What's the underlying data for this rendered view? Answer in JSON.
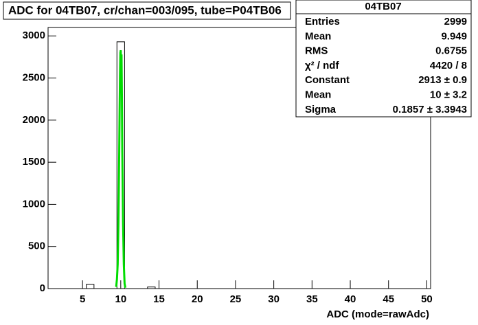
{
  "chart_data": {
    "type": "histogram",
    "title": "ADC for 04TB07,  cr/chan=003/095,  tube=P04TB06",
    "x_label": "ADC (mode=rawAdc)",
    "bins": [
      0.5,
      1.5,
      2.5,
      3.5,
      4.5,
      5.5,
      6.5,
      7.5,
      8.5,
      9.5,
      10.5,
      11.5,
      12.5,
      13.5,
      14.5,
      15.5,
      16.5,
      17.5,
      18.5,
      19.5,
      20.5,
      21.5,
      22.5,
      23.5,
      24.5,
      25.5,
      26.5,
      27.5,
      28.5,
      29.5,
      30.5,
      31.5,
      32.5,
      33.5,
      34.5,
      35.5,
      36.5,
      37.5,
      38.5,
      39.5,
      40.5,
      41.5,
      42.5,
      43.5,
      44.5,
      45.5,
      46.5,
      47.5,
      48.5,
      49.5,
      50.5
    ],
    "values": [
      0,
      0,
      0,
      0,
      0,
      50,
      0,
      0,
      0,
      2930,
      0,
      0,
      0,
      19,
      0,
      0,
      0,
      0,
      0,
      0,
      0,
      0,
      0,
      0,
      0,
      0,
      0,
      0,
      0,
      0,
      0,
      0,
      0,
      0,
      0,
      0,
      0,
      0,
      0,
      0,
      0,
      0,
      0,
      0,
      0,
      0,
      0,
      0,
      0,
      0
    ],
    "color": "#000000",
    "fit": {
      "color": "#00dd00",
      "x": [
        9.4,
        9.5,
        9.6,
        9.7,
        9.75,
        9.8,
        9.85,
        9.9,
        9.95,
        10.0,
        10.05,
        10.1,
        10.15,
        10.2,
        10.25,
        10.3,
        10.4,
        10.5,
        10.6
      ],
      "values": [
        20,
        110,
        290,
        790,
        1200,
        1630,
        2100,
        2520,
        2800,
        2830,
        2600,
        2780,
        2300,
        1630,
        1200,
        790,
        290,
        60,
        10
      ]
    },
    "xlim": [
      0.5,
      50.5
    ],
    "xticks": [
      5,
      10,
      15,
      20,
      25,
      30,
      35,
      40,
      45,
      50
    ],
    "ylim": [
      0,
      3100
    ],
    "yticks": [
      0,
      500,
      1000,
      1500,
      2000,
      2500,
      3000
    ],
    "stats": {
      "title": "04TB07",
      "rows": [
        [
          "Entries",
          "2999"
        ],
        [
          "Mean",
          "9.949"
        ],
        [
          "RMS",
          "0.6755"
        ],
        [
          "χ² / ndf",
          "4420 / 8"
        ],
        [
          "Constant",
          "2913 ± 0.9"
        ],
        [
          "Mean",
          "10 ± 3.2"
        ],
        [
          "Sigma",
          "0.1857 ± 3.3943"
        ]
      ]
    }
  }
}
